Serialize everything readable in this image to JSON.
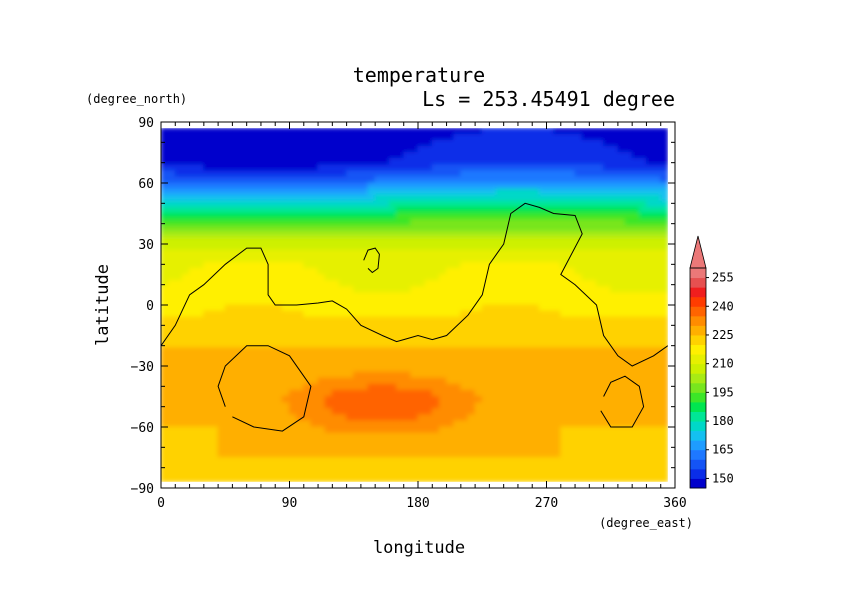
{
  "chart_data": {
    "type": "heatmap",
    "title": "temperature",
    "subtitle": "Ls = 253.45491 degree",
    "xlabel": "longitude",
    "ylabel": "latitude",
    "x_unit": "(degree_east)",
    "y_unit": "(degree_north)",
    "xlim": [
      0,
      360
    ],
    "ylim": [
      -90,
      90
    ],
    "x_ticks": [
      "0",
      "90",
      "180",
      "270",
      "360"
    ],
    "y_ticks": [
      "90",
      "60",
      "30",
      "0",
      "−30",
      "−60",
      "−90"
    ],
    "data_extent": {
      "lon": [
        0,
        355
      ],
      "lat": [
        -87,
        87
      ]
    },
    "colorbar": {
      "labels": [
        "255",
        "240",
        "225",
        "210",
        "195",
        "180",
        "165",
        "150"
      ],
      "levels": [
        145,
        150,
        155,
        160,
        165,
        170,
        175,
        180,
        185,
        190,
        195,
        200,
        205,
        210,
        215,
        220,
        225,
        230,
        235,
        240,
        245,
        250,
        255,
        260
      ],
      "colors": [
        "#0000cc",
        "#0a2de8",
        "#1454f5",
        "#1e78ff",
        "#1e9cff",
        "#14c0f0",
        "#00d8c8",
        "#00e696",
        "#00e650",
        "#3ce628",
        "#78e61e",
        "#a8eb14",
        "#cdf000",
        "#e6f000",
        "#fff000",
        "#ffd200",
        "#ffaf00",
        "#ff8c00",
        "#ff6400",
        "#ff3c00",
        "#f01e1e",
        "#e65050",
        "#eb7878"
      ],
      "extend_color": "#eb7878"
    },
    "field": {
      "description_lat_profile": [
        [
          87,
          146
        ],
        [
          80,
          148
        ],
        [
          70,
          150
        ],
        [
          62,
          160
        ],
        [
          55,
          172
        ],
        [
          48,
          182
        ],
        [
          42,
          192
        ],
        [
          36,
          200
        ],
        [
          30,
          208
        ],
        [
          22,
          214
        ],
        [
          10,
          216
        ],
        [
          0,
          218
        ],
        [
          -10,
          221
        ],
        [
          -20,
          225
        ],
        [
          -30,
          228
        ],
        [
          -45,
          230
        ],
        [
          -60,
          228
        ],
        [
          -75,
          225
        ],
        [
          -87,
          223
        ]
      ],
      "warm_core_lat_lon_value": [
        [
          -50,
          155,
          236
        ]
      ],
      "westward_polar_dip_lon": 70
    },
    "contours": [
      {
        "name": "",
        "points": [
          [
            0,
            -20
          ],
          [
            10,
            -10
          ],
          [
            20,
            5
          ],
          [
            30,
            10
          ],
          [
            45,
            20
          ],
          [
            60,
            28
          ],
          [
            70,
            28
          ],
          [
            75,
            20
          ],
          [
            75,
            5
          ],
          [
            80,
            0
          ],
          [
            95,
            0
          ],
          [
            110,
            1
          ],
          [
            120,
            2
          ],
          [
            130,
            -2
          ],
          [
            140,
            -10
          ],
          [
            155,
            -15
          ],
          [
            165,
            -18
          ],
          [
            170,
            -17
          ],
          [
            180,
            -15
          ],
          [
            190,
            -17
          ],
          [
            200,
            -15
          ],
          [
            215,
            -5
          ],
          [
            225,
            5
          ],
          [
            230,
            20
          ],
          [
            235,
            25
          ],
          [
            240,
            30
          ],
          [
            245,
            45
          ],
          [
            255,
            50
          ],
          [
            265,
            48
          ],
          [
            275,
            45
          ],
          [
            290,
            44
          ],
          [
            295,
            35
          ],
          [
            280,
            15
          ],
          [
            290,
            10
          ],
          [
            305,
            0
          ],
          [
            310,
            -15
          ],
          [
            320,
            -25
          ],
          [
            330,
            -30
          ],
          [
            345,
            -25
          ],
          [
            355,
            -20
          ]
        ]
      },
      {
        "name": "",
        "points": [
          [
            142,
            22
          ],
          [
            145,
            27
          ],
          [
            150,
            28
          ],
          [
            153,
            25
          ],
          [
            152,
            18
          ],
          [
            148,
            16
          ],
          [
            145,
            18
          ]
        ]
      },
      {
        "name": "",
        "points": [
          [
            45,
            -50
          ],
          [
            40,
            -40
          ],
          [
            45,
            -30
          ],
          [
            60,
            -20
          ],
          [
            75,
            -20
          ],
          [
            90,
            -25
          ],
          [
            105,
            -40
          ],
          [
            100,
            -55
          ],
          [
            85,
            -62
          ],
          [
            65,
            -60
          ],
          [
            50,
            -55
          ]
        ]
      },
      {
        "name": "",
        "points": [
          [
            310,
            -45
          ],
          [
            315,
            -38
          ],
          [
            325,
            -35
          ],
          [
            335,
            -40
          ],
          [
            338,
            -50
          ],
          [
            330,
            -60
          ],
          [
            315,
            -60
          ],
          [
            308,
            -52
          ]
        ]
      }
    ]
  }
}
